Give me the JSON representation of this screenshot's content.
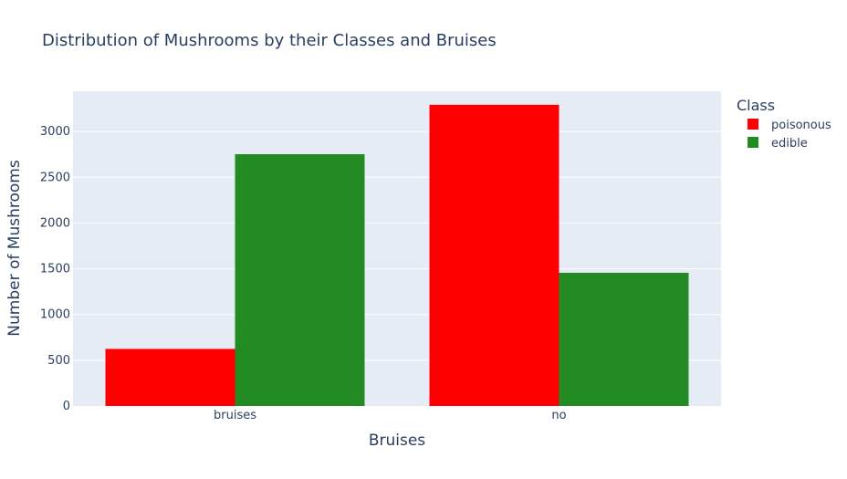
{
  "chart_data": {
    "type": "bar",
    "title": "Distribution of Mushrooms by their Classes and Bruises",
    "xlabel": "Bruises",
    "ylabel": "Number of Mushrooms",
    "categories": [
      "bruises",
      "no"
    ],
    "series": [
      {
        "name": "poisonous",
        "color": "#ff0000",
        "values": [
          624,
          3292
        ]
      },
      {
        "name": "edible",
        "color": "#228b22",
        "values": [
          2752,
          1456
        ]
      }
    ],
    "ylim": [
      0,
      3440
    ],
    "yticks": [
      0,
      500,
      1000,
      1500,
      2000,
      2500,
      3000
    ],
    "grid": true,
    "legend": {
      "title": "Class",
      "placement": "right"
    },
    "plot_background": "#e5ecf6"
  }
}
